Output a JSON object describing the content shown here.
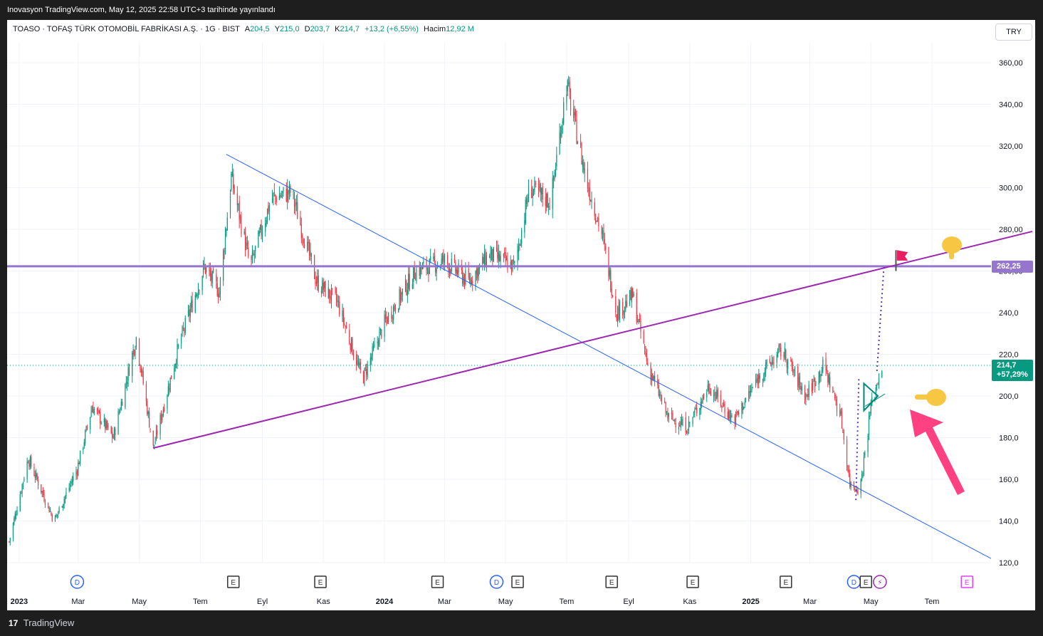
{
  "header": {
    "published_line": "Inovasyon TradingView.com, May 12, 2025 22:58 UTC+3 tarihinde yayınlandı"
  },
  "legend": {
    "symbol_line": "TOASO · TOFAŞ TÜRK OTOMOBİL FABRİKASI A.Ş. · 1G · BIST",
    "open_label": "A",
    "open_value": "204,5",
    "high_label": "Y",
    "high_value": "215,0",
    "low_label": "D",
    "low_value": "203,7",
    "close_label": "K",
    "close_value": "214,7",
    "change": "+13,2 (+6,55%)",
    "volume_label": "Hacim",
    "volume_value": "12,92 M"
  },
  "currency_button": "TRY",
  "footer": {
    "brand": "TradingView"
  },
  "colors": {
    "up": "#089981",
    "down": "#f23645",
    "trendline": "#2962ff",
    "support": "#9c27b0",
    "hline": "#9575cd",
    "arrow": "#ff4081",
    "hand": "#f7c744",
    "flag": "#e91e63"
  },
  "chart_data": {
    "type": "candlestick",
    "title": "TOASO · TOFAŞ TÜRK OTOMOBİL FABRİKASI A.Ş. · 1G · BIST",
    "y_axis": {
      "ticks": [
        "360,00",
        "340,00",
        "320,00",
        "300,00",
        "280,00",
        "260,00",
        "240,0",
        "220,0",
        "200,0",
        "180,0",
        "160,0",
        "140,0",
        "120,0"
      ],
      "min": 120,
      "max": 360
    },
    "x_axis": {
      "labels": [
        "2023",
        "Mar",
        "May",
        "Tem",
        "Eyl",
        "Kas",
        "2024",
        "Mar",
        "May",
        "Tem",
        "Eyl",
        "Kas",
        "2025",
        "Mar",
        "May",
        "Tem"
      ]
    },
    "price_path": [
      [
        "2022-12-22",
        130
      ],
      [
        "2023-01-10",
        170
      ],
      [
        "2023-02-05",
        140
      ],
      [
        "2023-02-28",
        165
      ],
      [
        "2023-03-15",
        195
      ],
      [
        "2023-04-05",
        180
      ],
      [
        "2023-04-28",
        228
      ],
      [
        "2023-05-15",
        175
      ],
      [
        "2023-06-10",
        225
      ],
      [
        "2023-07-05",
        262
      ],
      [
        "2023-07-20",
        250
      ],
      [
        "2023-08-01",
        305
      ],
      [
        "2023-08-20",
        262
      ],
      [
        "2023-09-10",
        295
      ],
      [
        "2023-09-30",
        298
      ],
      [
        "2023-10-25",
        255
      ],
      [
        "2023-11-15",
        245
      ],
      [
        "2023-12-10",
        208
      ],
      [
        "2024-01-01",
        235
      ],
      [
        "2024-02-01",
        260
      ],
      [
        "2024-03-01",
        265
      ],
      [
        "2024-03-25",
        255
      ],
      [
        "2024-04-15",
        268
      ],
      [
        "2024-05-10",
        262
      ],
      [
        "2024-05-25",
        300
      ],
      [
        "2024-06-15",
        293
      ],
      [
        "2024-07-01",
        350
      ],
      [
        "2024-07-20",
        305
      ],
      [
        "2024-08-05",
        278
      ],
      [
        "2024-08-20",
        240
      ],
      [
        "2024-09-05",
        248
      ],
      [
        "2024-09-20",
        215
      ],
      [
        "2024-10-10",
        190
      ],
      [
        "2024-10-30",
        185
      ],
      [
        "2024-11-20",
        205
      ],
      [
        "2024-12-15",
        188
      ],
      [
        "2025-01-10",
        210
      ],
      [
        "2025-02-01",
        222
      ],
      [
        "2025-02-25",
        200
      ],
      [
        "2025-03-15",
        215
      ],
      [
        "2025-04-01",
        190
      ],
      [
        "2025-04-10",
        158
      ],
      [
        "2025-04-20",
        155
      ],
      [
        "2025-05-01",
        195
      ],
      [
        "2025-05-12",
        214.7
      ]
    ],
    "last_price": {
      "label": "214,7",
      "change": "+57,29%"
    },
    "horizontal_level": {
      "label": "262,25",
      "value": 262.25
    },
    "annotation_markers": [
      {
        "x": "2023-02-28",
        "label": "D",
        "kind": "dividend"
      },
      {
        "x": "2023-08-03",
        "label": "E",
        "kind": "earnings"
      },
      {
        "x": "2023-10-29",
        "label": "E",
        "kind": "earnings"
      },
      {
        "x": "2024-02-23",
        "label": "E",
        "kind": "earnings"
      },
      {
        "x": "2024-04-22",
        "label": "D",
        "kind": "dividend"
      },
      {
        "x": "2024-05-13",
        "label": "E",
        "kind": "earnings"
      },
      {
        "x": "2024-08-15",
        "label": "E",
        "kind": "earnings"
      },
      {
        "x": "2024-11-04",
        "label": "E",
        "kind": "earnings"
      },
      {
        "x": "2025-02-05",
        "label": "E",
        "kind": "earnings"
      },
      {
        "x": "2025-04-14",
        "label": "D",
        "kind": "dividend"
      },
      {
        "x": "2025-04-26",
        "label": "E",
        "kind": "earnings"
      },
      {
        "x": "2025-05-10",
        "label": "⚡",
        "kind": "split"
      },
      {
        "x": "2025-08-05",
        "label": "E",
        "kind": "earnings_future"
      }
    ]
  }
}
